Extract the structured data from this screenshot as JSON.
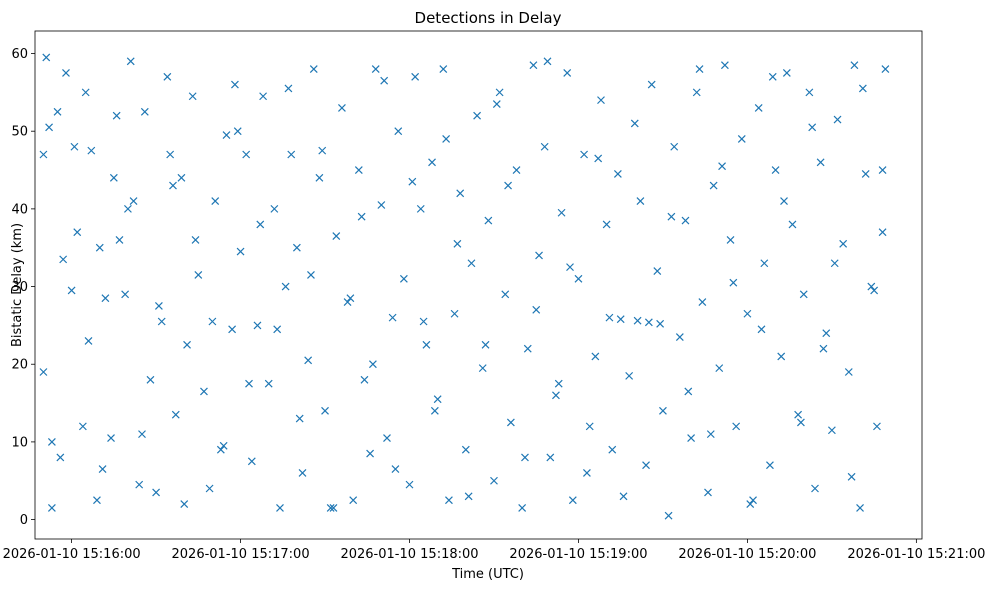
{
  "chart_data": {
    "type": "scatter",
    "title": "Detections in Delay",
    "xlabel": "Time (UTC)",
    "ylabel": "Bistatic Delay (km)",
    "x_ticks": [
      "2026-01-10 15:16:00",
      "2026-01-10 15:17:00",
      "2026-01-10 15:18:00",
      "2026-01-10 15:19:00",
      "2026-01-10 15:20:00",
      "2026-01-10 15:21:00"
    ],
    "y_ticks": [
      0,
      10,
      20,
      30,
      40,
      50,
      60
    ],
    "xlim": [
      "2026-01-10 15:15:47",
      "2026-01-10 15:21:02"
    ],
    "ylim": [
      -2.5,
      62.9
    ],
    "marker": "x",
    "grid": false,
    "color": "#1f77b4",
    "series": [
      {
        "x": [
          "15:15:50",
          "15:15:51",
          "15:15:52",
          "15:15:53",
          "15:15:55",
          "15:15:56",
          "15:15:58",
          "15:16:00",
          "15:16:02",
          "15:16:04",
          "15:16:05",
          "15:16:07",
          "15:16:09",
          "15:16:10",
          "15:16:12",
          "15:16:14",
          "15:16:15",
          "15:16:17",
          "15:16:19",
          "15:16:21",
          "15:16:22",
          "15:16:24",
          "15:16:26",
          "15:16:28",
          "15:16:30",
          "15:16:32",
          "15:16:34",
          "15:16:35",
          "15:16:37",
          "15:16:39",
          "15:16:41",
          "15:16:43",
          "15:16:45",
          "15:16:47",
          "15:16:49",
          "15:16:51",
          "15:16:53",
          "15:16:55",
          "15:16:57",
          "15:16:58",
          "15:17:00",
          "15:17:02",
          "15:17:04",
          "15:17:06",
          "15:17:08",
          "15:17:10",
          "15:17:12",
          "15:17:14",
          "15:17:16",
          "15:17:18",
          "15:17:20",
          "15:17:22",
          "15:17:24",
          "15:17:26",
          "15:17:28",
          "15:17:30",
          "15:17:32",
          "15:17:34",
          "15:17:36",
          "15:17:38",
          "15:17:40",
          "15:17:42",
          "15:17:44",
          "15:17:46",
          "15:17:48",
          "15:17:50",
          "15:17:52",
          "15:17:54",
          "15:17:56",
          "15:17:58",
          "15:18:00",
          "15:18:02",
          "15:18:04",
          "15:18:06",
          "15:18:08",
          "15:18:10",
          "15:18:12",
          "15:18:14",
          "15:18:16",
          "15:18:18",
          "15:18:20",
          "15:18:22",
          "15:18:24",
          "15:18:26",
          "15:18:28",
          "15:18:30",
          "15:18:32",
          "15:18:34",
          "15:18:36",
          "15:18:38",
          "15:18:40",
          "15:18:42",
          "15:18:44",
          "15:18:46",
          "15:18:48",
          "15:18:50",
          "15:18:52",
          "15:18:54",
          "15:18:56",
          "15:18:58",
          "15:19:00",
          "15:19:02",
          "15:19:04",
          "15:19:06",
          "15:19:08",
          "15:19:10",
          "15:19:12",
          "15:19:14",
          "15:19:16",
          "15:19:18",
          "15:19:20",
          "15:19:22",
          "15:19:24",
          "15:19:26",
          "15:19:28",
          "15:19:30",
          "15:19:32",
          "15:19:34",
          "15:19:36",
          "15:19:38",
          "15:19:40",
          "15:19:42",
          "15:19:44",
          "15:19:46",
          "15:19:48",
          "15:19:50",
          "15:19:52",
          "15:19:54",
          "15:19:56",
          "15:19:58",
          "15:20:00",
          "15:20:02",
          "15:20:04",
          "15:20:06",
          "15:20:08",
          "15:20:10",
          "15:20:12",
          "15:20:14",
          "15:20:16",
          "15:20:18",
          "15:20:20",
          "15:20:22",
          "15:20:24",
          "15:20:26",
          "15:20:28",
          "15:20:30",
          "15:20:32",
          "15:20:34",
          "15:20:36",
          "15:20:38",
          "15:20:40",
          "15:20:42",
          "15:20:44",
          "15:20:46",
          "15:20:48",
          "15:20:49",
          "15:15:50",
          "15:15:53",
          "15:15:57",
          "15:16:01",
          "15:16:06",
          "15:16:11",
          "15:16:16",
          "15:16:20",
          "15:16:25",
          "15:16:31",
          "15:16:36",
          "15:16:40",
          "15:16:44",
          "15:16:50",
          "15:16:54",
          "15:16:59",
          "15:17:03",
          "15:17:07",
          "15:17:13",
          "15:17:17",
          "15:17:21",
          "15:17:25",
          "15:17:29",
          "15:17:33",
          "15:17:39",
          "15:17:43",
          "15:17:47",
          "15:17:51",
          "15:17:55",
          "15:18:01",
          "15:18:05",
          "15:18:09",
          "15:18:13",
          "15:18:17",
          "15:18:21",
          "15:18:27",
          "15:18:31",
          "15:18:35",
          "15:18:41",
          "15:18:45",
          "15:18:49",
          "15:18:53",
          "15:18:57",
          "15:19:03",
          "15:19:07",
          "15:19:11",
          "15:19:15",
          "15:19:21",
          "15:19:25",
          "15:19:29",
          "15:19:33",
          "15:19:39",
          "15:19:43",
          "15:19:47",
          "15:19:51",
          "15:19:55",
          "15:20:01",
          "15:20:05",
          "15:20:09",
          "15:20:13",
          "15:20:19",
          "15:20:23",
          "15:20:27",
          "15:20:31",
          "15:20:37",
          "15:20:41",
          "15:20:45",
          "15:20:48"
        ],
        "y": [
          47.0,
          59.5,
          50.5,
          1.5,
          52.5,
          8.0,
          57.5,
          29.5,
          37.0,
          12.0,
          55.0,
          47.5,
          2.5,
          35.0,
          28.5,
          10.5,
          44.0,
          36.0,
          29.0,
          59.0,
          41.0,
          4.5,
          52.5,
          18.0,
          3.5,
          25.5,
          57.0,
          47.0,
          13.5,
          44.0,
          22.5,
          54.5,
          31.5,
          16.5,
          4.0,
          41.0,
          9.0,
          49.5,
          24.5,
          56.0,
          34.5,
          47.0,
          7.5,
          25.0,
          54.5,
          17.5,
          40.0,
          1.5,
          30.0,
          47.0,
          35.0,
          6.0,
          20.5,
          58.0,
          44.0,
          14.0,
          1.5,
          36.5,
          53.0,
          28.0,
          2.5,
          45.0,
          18.0,
          8.5,
          58.0,
          40.5,
          10.5,
          26.0,
          50.0,
          31.0,
          4.5,
          57.0,
          40.0,
          22.5,
          46.0,
          15.5,
          58.0,
          2.5,
          26.5,
          42.0,
          9.0,
          33.0,
          52.0,
          19.5,
          38.5,
          5.0,
          55.0,
          29.0,
          12.5,
          45.0,
          1.5,
          22.0,
          58.5,
          34.0,
          48.0,
          8.0,
          16.0,
          39.5,
          57.5,
          2.5,
          31.0,
          47.0,
          12.0,
          21.0,
          54.0,
          38.0,
          9.0,
          44.5,
          3.0,
          18.5,
          51.0,
          41.0,
          7.0,
          56.0,
          32.0,
          14.0,
          0.5,
          48.0,
          23.5,
          38.5,
          10.5,
          55.0,
          28.0,
          3.5,
          43.0,
          19.5,
          58.5,
          36.0,
          12.0,
          49.0,
          26.5,
          2.5,
          53.0,
          33.0,
          7.0,
          45.0,
          21.0,
          57.5,
          38.0,
          13.5,
          29.0,
          55.0,
          4.0,
          46.0,
          24.0,
          11.5,
          51.5,
          35.5,
          19.0,
          58.5,
          1.5,
          44.5,
          30.0,
          12.0,
          37.0,
          58.0,
          19.0,
          10.0,
          33.5,
          48.0,
          23.0,
          6.5,
          52.0,
          40.0,
          11.0,
          27.5,
          43.0,
          2.0,
          36.0,
          25.5,
          9.5,
          50.0,
          17.5,
          38.0,
          24.5,
          55.5,
          13.0,
          31.5,
          47.5,
          1.5,
          28.5,
          39.0,
          20.0,
          56.5,
          6.5,
          43.5,
          25.5,
          14.0,
          49.0,
          35.5,
          3.0,
          22.5,
          53.5,
          43.0,
          8.0,
          27.0,
          59.0,
          17.5,
          32.5,
          6.0,
          46.5,
          26.0,
          25.8,
          25.6,
          25.4,
          25.2,
          39.0,
          16.5,
          58.0,
          11.0,
          45.5,
          30.5,
          2.0,
          24.5,
          57.0,
          41.0,
          12.5,
          50.5,
          22.0,
          33.0,
          5.5,
          55.5,
          29.5,
          45.0
        ]
      }
    ]
  }
}
